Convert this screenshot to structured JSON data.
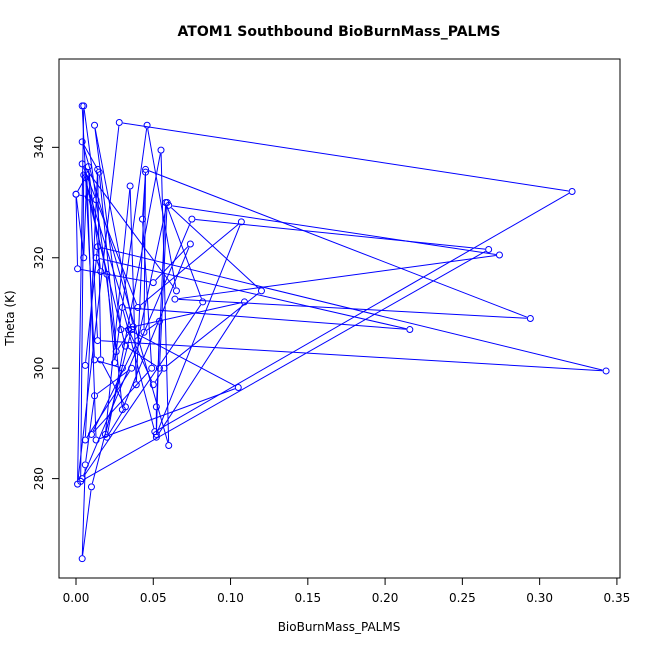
{
  "chart_data": {
    "type": "line",
    "title": "ATOM1 Southbound BioBurnMass_PALMS",
    "xlabel": "BioBurnMass_PALMS",
    "ylabel": "Theta (K)",
    "xlim": [
      -0.011,
      0.352
    ],
    "ylim": [
      262,
      356
    ],
    "xticks": [
      0.0,
      0.05,
      0.1,
      0.15,
      0.2,
      0.25,
      0.3,
      0.35
    ],
    "xtick_labels": [
      "0.00",
      "0.05",
      "0.10",
      "0.15",
      "0.20",
      "0.25",
      "0.30",
      "0.35"
    ],
    "yticks": [
      280,
      300,
      320,
      340
    ],
    "ytick_labels": [
      "280",
      "300",
      "320",
      "340"
    ],
    "grid": false,
    "series": [
      {
        "color": "#0000ff",
        "marker": "open-circle",
        "x": [
          0.004,
          0.012,
          0.03,
          0.01,
          0.004,
          0.006,
          0.012,
          0.036,
          0.006,
          0.014,
          0.016,
          0.032,
          0.02,
          0.055,
          0.06,
          0.004,
          0.015,
          0.03,
          0.074,
          0.05,
          0.001,
          0.0,
          0.006,
          0.02,
          0.025,
          0.046,
          0.065,
          0.004,
          0.013,
          0.04,
          0.107,
          0.052,
          0.052,
          0.058,
          0.082,
          0.004,
          0.075,
          0.267,
          0.003,
          0.005,
          0.036,
          0.019,
          0.035,
          0.039,
          0.045,
          0.043,
          0.049,
          0.01,
          0.04,
          0.059,
          0.054,
          0.032,
          0.008,
          0.0,
          0.005,
          0.007,
          0.013,
          0.105,
          0.034,
          0.05,
          0.057,
          0.12,
          0.06,
          0.274,
          0.064,
          0.294,
          0.045,
          0.044,
          0.054,
          0.052,
          0.109,
          0.029,
          0.012,
          0.037,
          0.026,
          0.005,
          0.001,
          0.028,
          0.321,
          0.051,
          0.03,
          0.216,
          0.013,
          0.016,
          0.008,
          0.014,
          0.343,
          0.014,
          0.006
        ],
        "y": [
          347.5,
          301.5,
          300.0,
          278.5,
          265.5,
          282.5,
          295.0,
          300.0,
          287.0,
          336.0,
          301.5,
          293.0,
          287.5,
          339.5,
          286.0,
          341.0,
          335.5,
          292.5,
          322.5,
          315.5,
          318.0,
          331.5,
          334.5,
          317.0,
          301.0,
          344.0,
          314.0,
          337.0,
          330.5,
          311.0,
          326.5,
          288.0,
          293.0,
          330.0,
          312.0,
          280.0,
          327.0,
          321.5,
          279.5,
          335.0,
          307.0,
          288.0,
          333.0,
          297.0,
          335.5,
          327.0,
          300.0,
          288.0,
          305.0,
          330.0,
          300.0,
          304.0,
          331.0,
          331.5,
          320.0,
          335.0,
          287.0,
          296.5,
          307.0,
          297.0,
          300.0,
          314.0,
          329.5,
          320.5,
          312.5,
          309.0,
          336.0,
          306.5,
          308.5,
          287.5,
          312.0,
          307.0,
          344.0,
          307.5,
          303.0,
          347.5,
          279.0,
          344.5,
          332.0,
          288.5,
          311.0,
          307.0,
          320.0,
          317.5,
          336.5,
          305.0,
          299.5,
          322.0,
          300.5
        ]
      }
    ]
  }
}
